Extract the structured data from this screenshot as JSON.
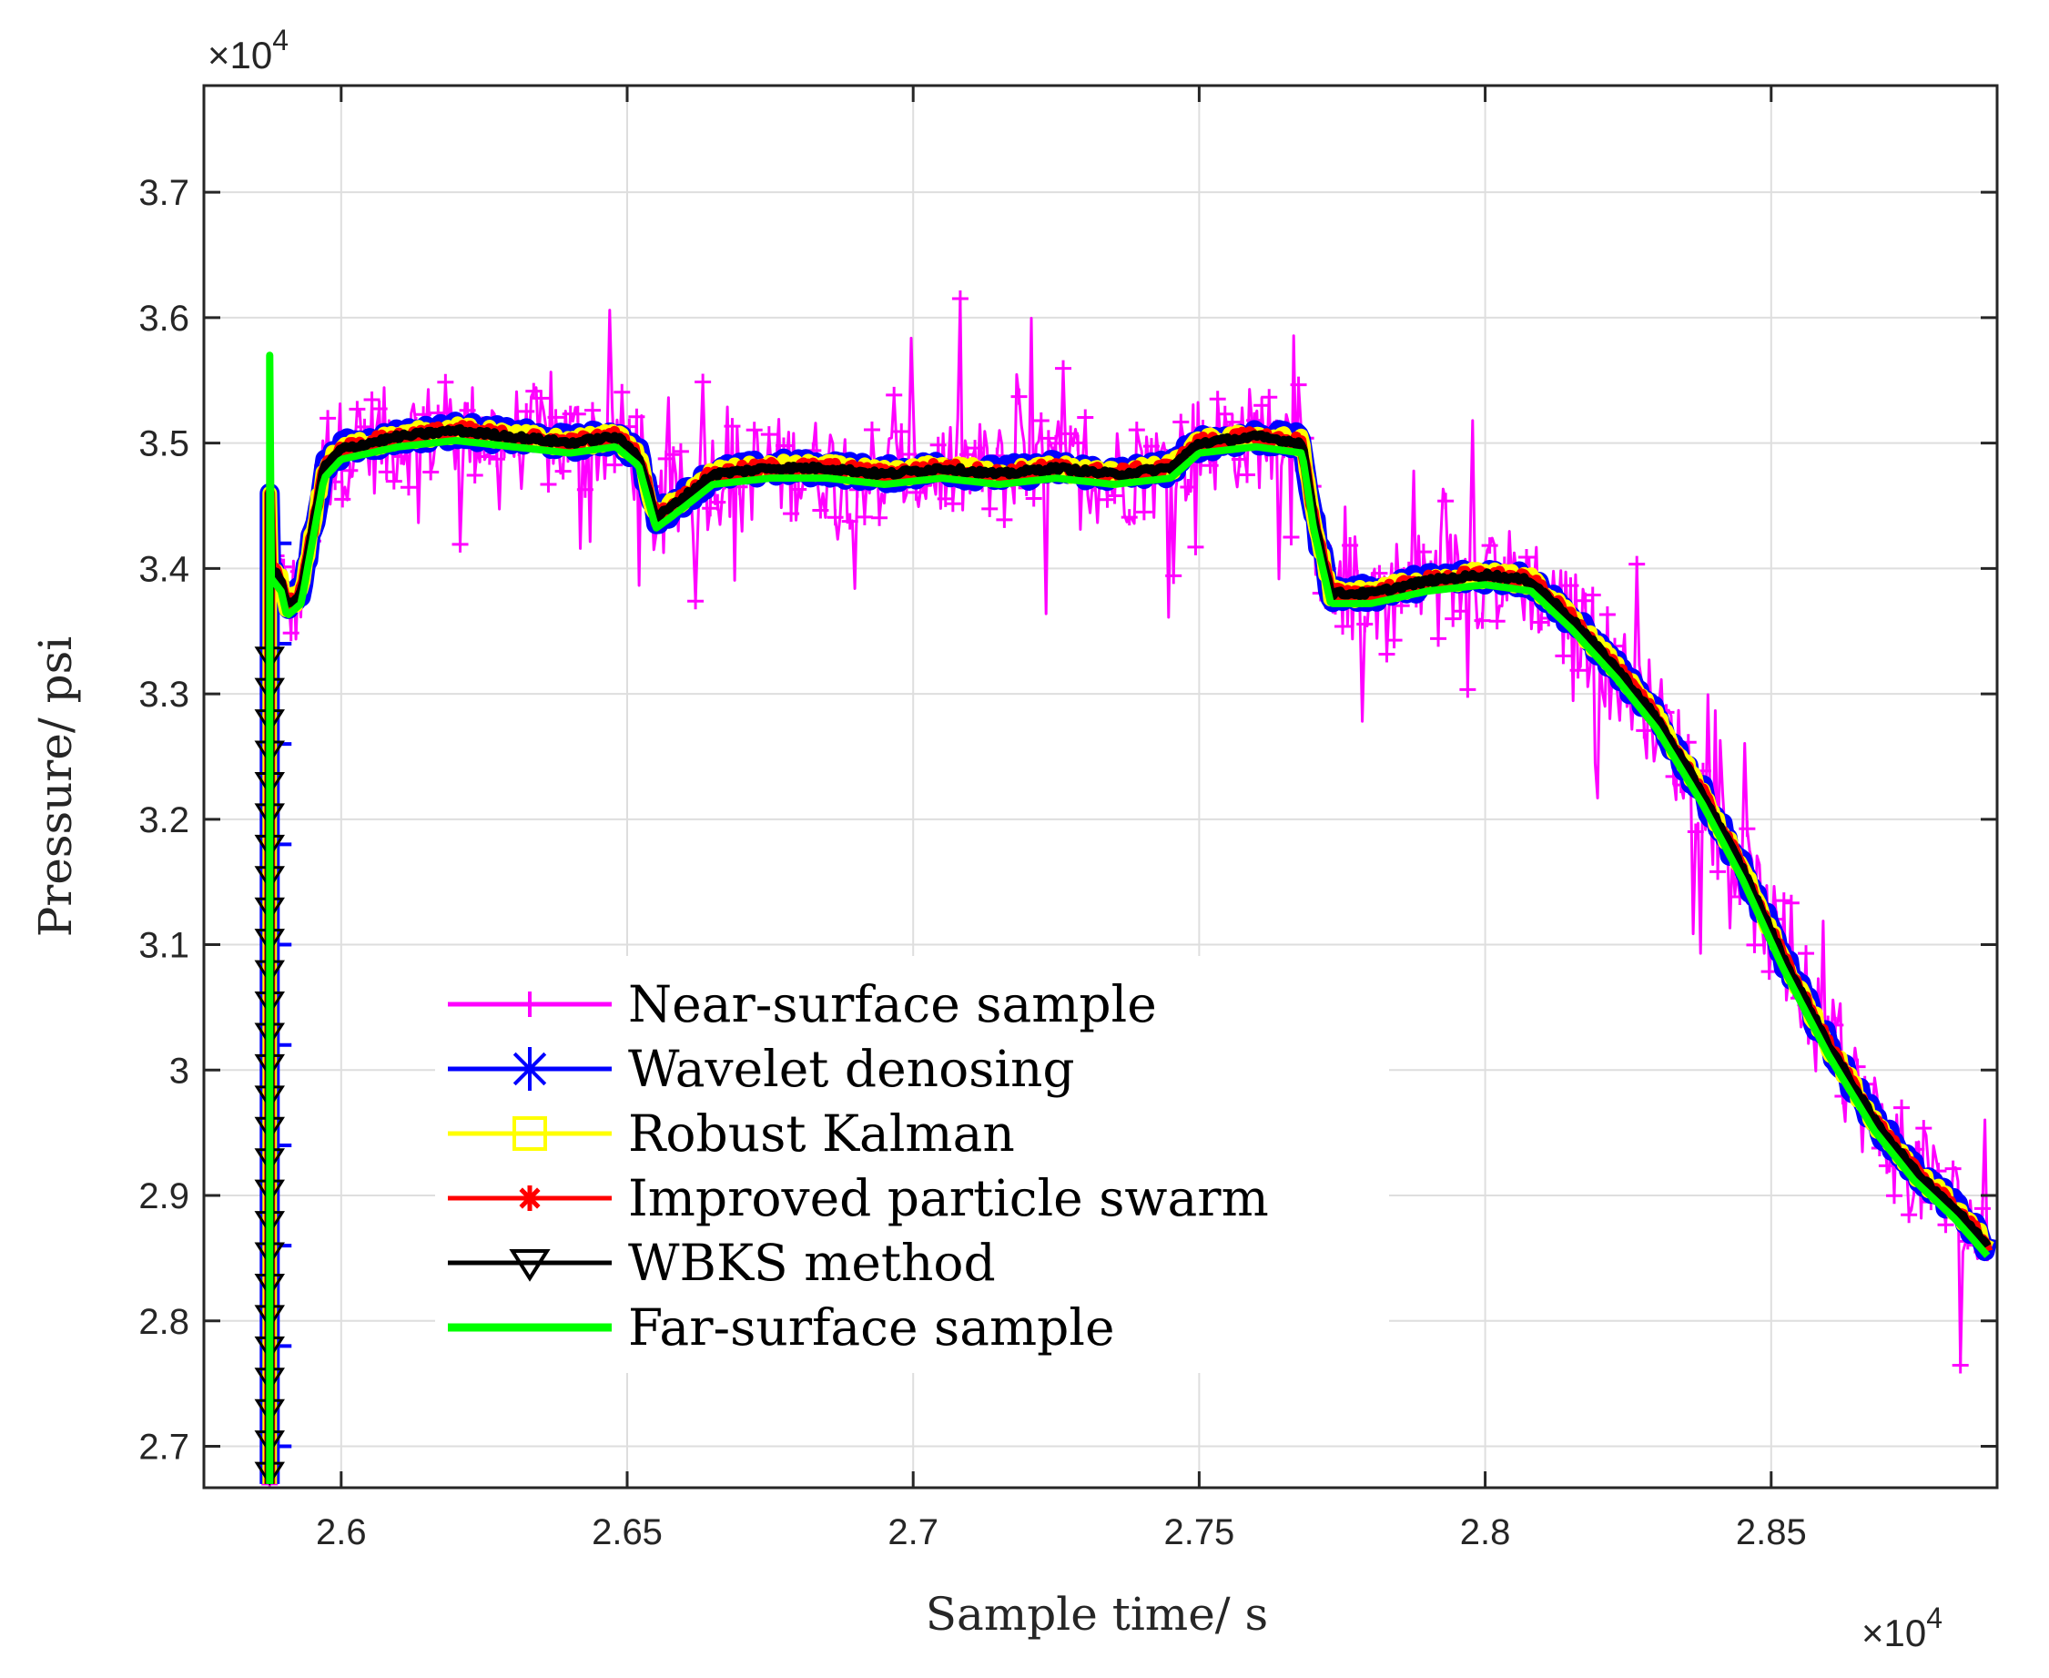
{
  "chart_data": {
    "type": "line",
    "title": "",
    "xlabel": "Sample time/ s",
    "ylabel": "Pressure/ psi",
    "x_multiplier": "×10",
    "x_multiplier_exp": "4",
    "y_multiplier": "×10",
    "y_multiplier_exp": "4",
    "xlim": [
      2.576,
      2.8895
    ],
    "ylim": [
      2.667,
      3.785
    ],
    "xticks": [
      2.6,
      2.65,
      2.7,
      2.75,
      2.8,
      2.85
    ],
    "xtick_labels": [
      "2.6",
      "2.65",
      "2.7",
      "2.75",
      "2.8",
      "2.85"
    ],
    "yticks": [
      2.7,
      2.8,
      2.9,
      3.0,
      3.1,
      3.2,
      3.3,
      3.4,
      3.5,
      3.6,
      3.7
    ],
    "ytick_labels": [
      "2.7",
      "2.8",
      "2.9",
      "3",
      "3.1",
      "3.2",
      "3.3",
      "3.4",
      "3.5",
      "3.6",
      "3.7"
    ],
    "grid": true,
    "legend_position": "lower-left",
    "profile_x": [
      2.5875,
      2.5878,
      2.5895,
      2.5905,
      2.593,
      2.597,
      2.6,
      2.605,
      2.61,
      2.62,
      2.63,
      2.64,
      2.648,
      2.652,
      2.655,
      2.658,
      2.665,
      2.675,
      2.685,
      2.695,
      2.705,
      2.715,
      2.725,
      2.735,
      2.745,
      2.75,
      2.76,
      2.768,
      2.77,
      2.773,
      2.78,
      2.79,
      2.8,
      2.808,
      2.815,
      2.823,
      2.83,
      2.838,
      2.845,
      2.852,
      2.86,
      2.868,
      2.875,
      2.882,
      2.8878
    ],
    "profile_y": [
      2.67,
      3.4,
      3.39,
      3.37,
      3.38,
      3.48,
      3.495,
      3.5,
      3.505,
      3.51,
      3.505,
      3.5,
      3.505,
      3.49,
      3.44,
      3.45,
      3.475,
      3.48,
      3.48,
      3.475,
      3.48,
      3.475,
      3.48,
      3.475,
      3.48,
      3.5,
      3.505,
      3.5,
      3.44,
      3.38,
      3.38,
      3.39,
      3.395,
      3.39,
      3.36,
      3.32,
      3.28,
      3.22,
      3.16,
      3.09,
      3.02,
      2.96,
      2.92,
      2.89,
      2.86
    ],
    "series": [
      {
        "name": "Near-surface sample",
        "color": "#ff00ff",
        "marker": "+",
        "noise": 0.042,
        "offset": 0.0
      },
      {
        "name": "Wavelet denosing",
        "color": "#0000ff",
        "marker": "*",
        "noise": 0.008,
        "offset": 0.0
      },
      {
        "name": "Robust Kalman",
        "color": "#ffff00",
        "marker": "square",
        "noise": 0.006,
        "offset": 0.0
      },
      {
        "name": "Improved particle swarm",
        "color": "#ff0000",
        "marker": "*",
        "noise": 0.005,
        "offset": 0.0
      },
      {
        "name": "WBKS method",
        "color": "#000000",
        "marker": "triangle-down",
        "noise": 0.002,
        "offset": 0.0
      },
      {
        "name": "Far-surface sample",
        "color": "#00ff00",
        "marker": "none",
        "noise": 0.0,
        "offset": -0.008
      }
    ]
  }
}
